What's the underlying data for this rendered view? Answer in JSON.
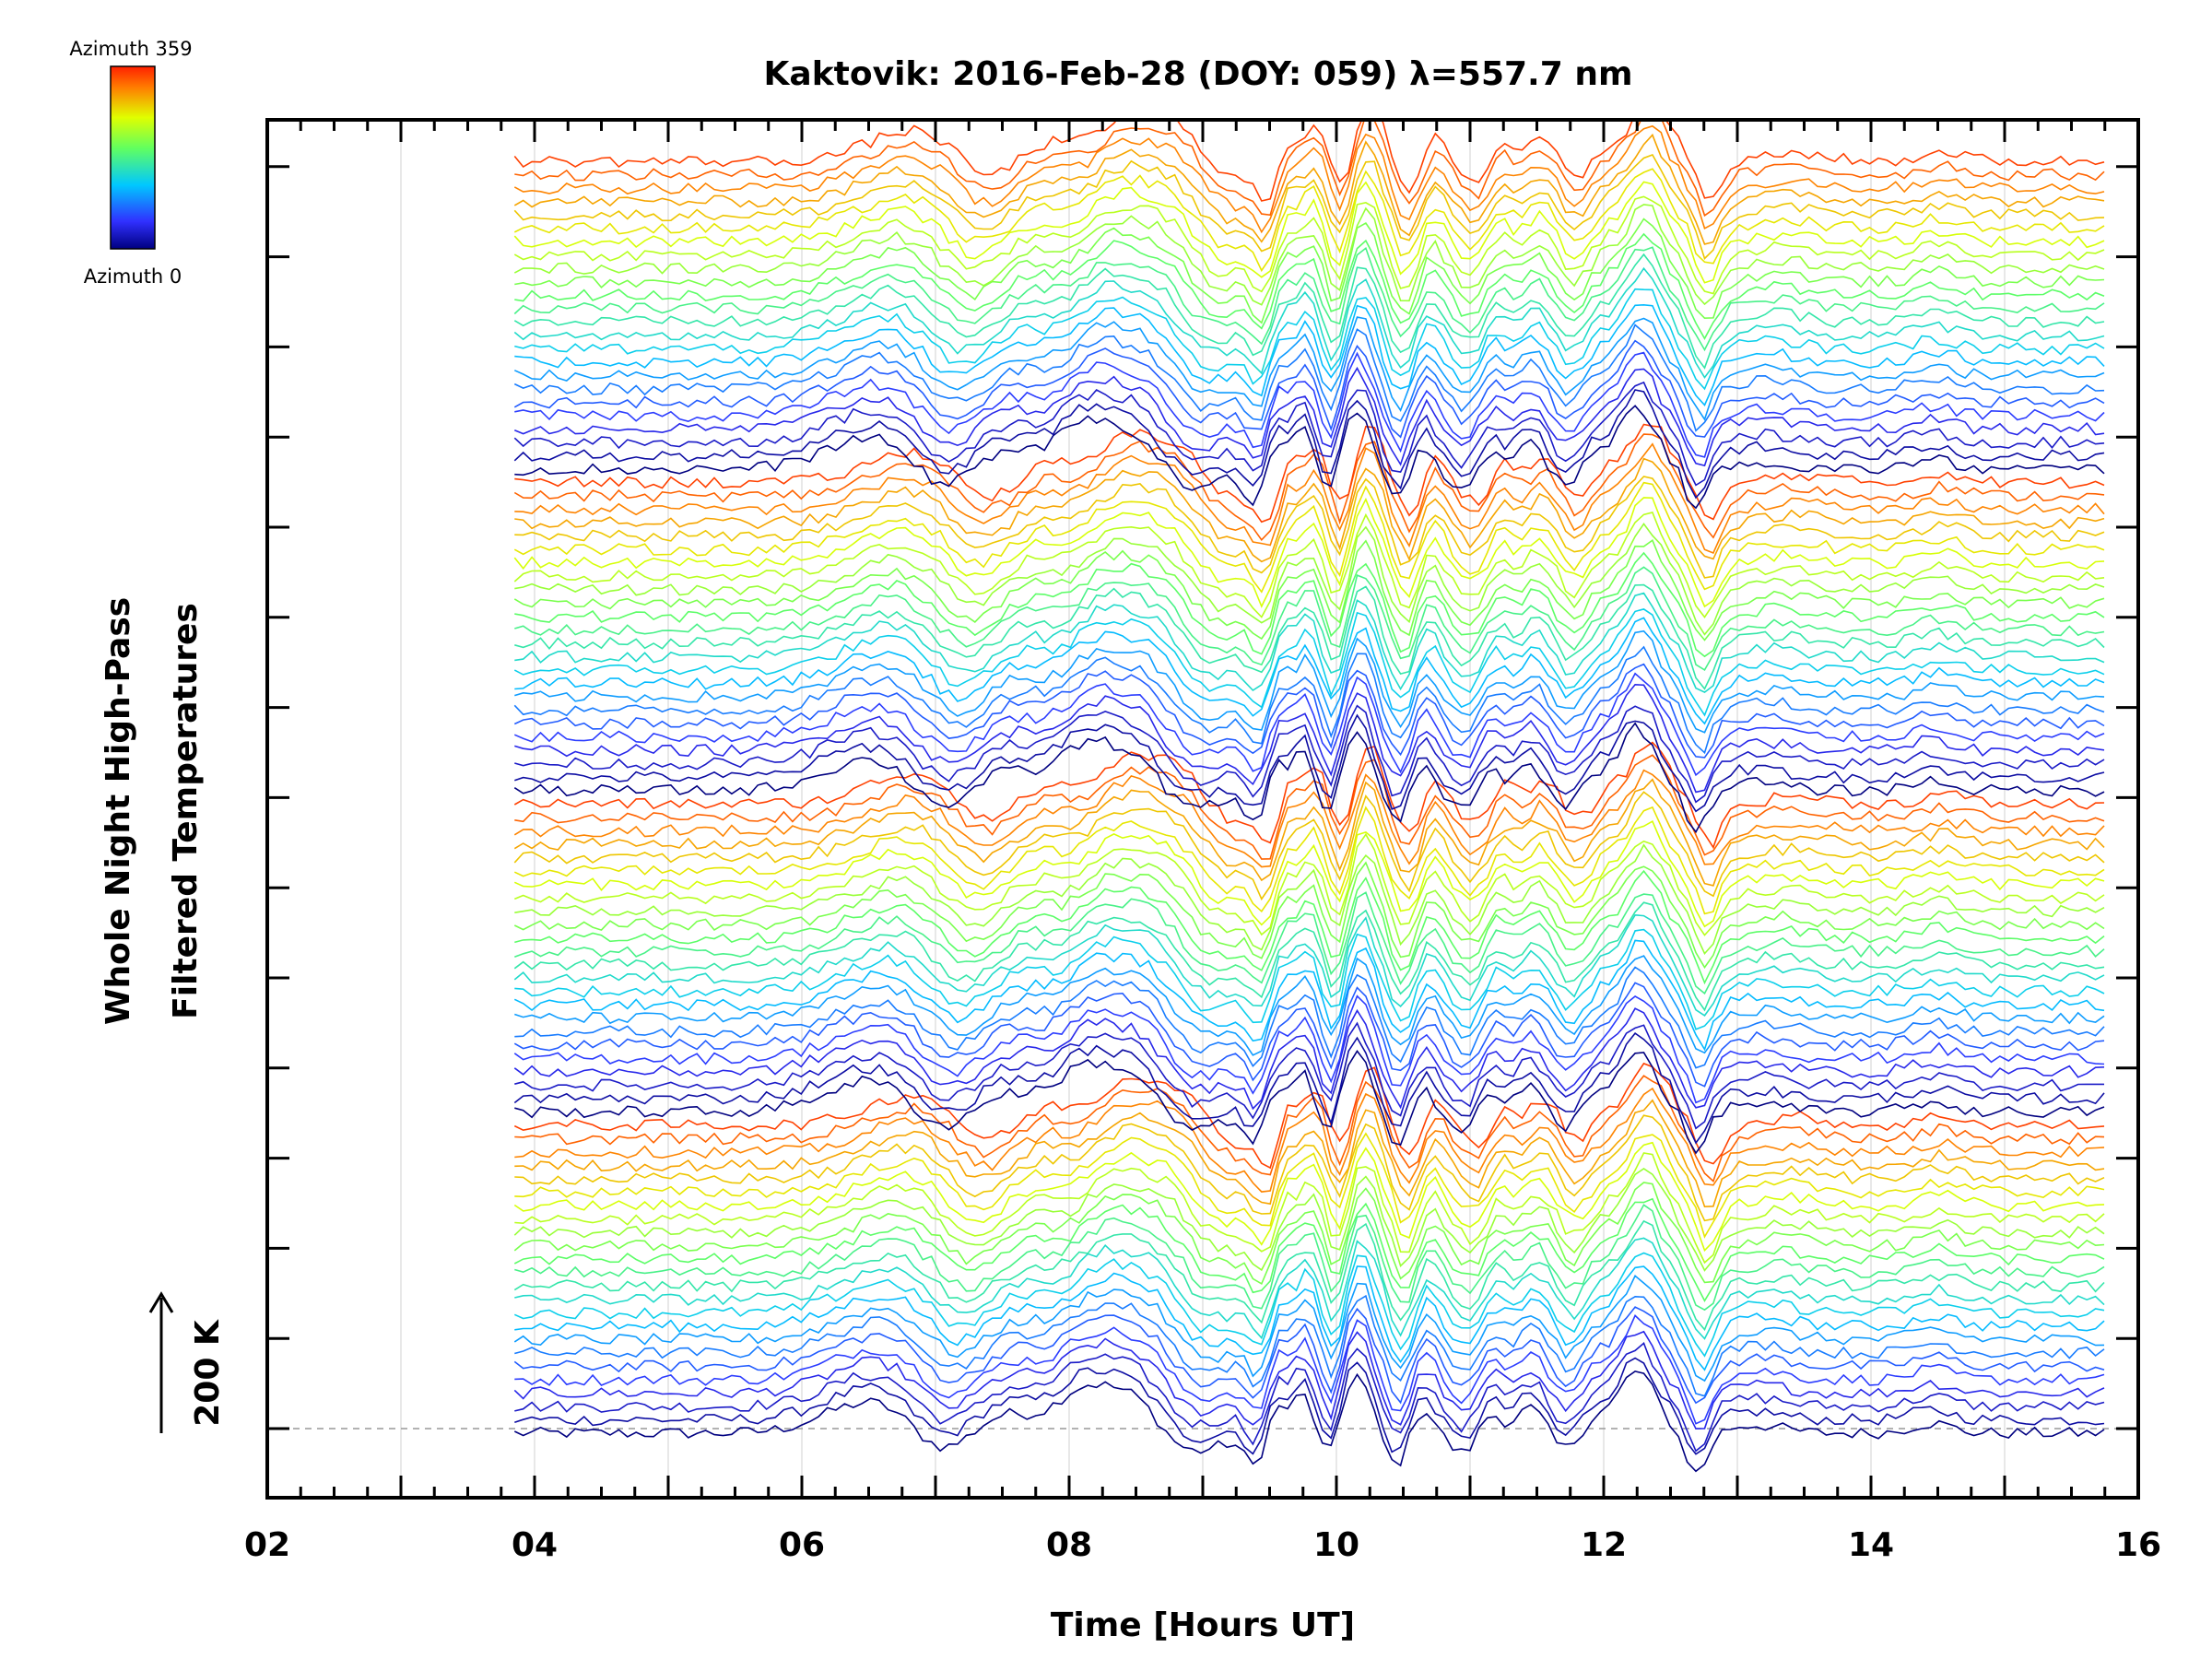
{
  "chart_data": {
    "type": "line",
    "title": "Kaktovik: 2016-Feb-28 (DOY: 059) λ=557.7 nm",
    "xlabel": "Time [Hours UT]",
    "ylabel_line1": "Whole Night High-Pass",
    "ylabel_line2": "Filtered Temperatures",
    "scale_bar_label": "200 K",
    "xlim": [
      2,
      16
    ],
    "x_tick_labels": [
      "02",
      "04",
      "06",
      "08",
      "10",
      "12",
      "14",
      "16"
    ],
    "data_start_hour": 3.85,
    "data_end_hour": 15.8,
    "n_series": 96,
    "colorbar": {
      "top_label": "Azimuth 359",
      "bottom_label": "Azimuth 0",
      "colormap": "rainbow",
      "stops": [
        "#000080",
        "#3030ff",
        "#00c8ff",
        "#60ff60",
        "#e0ff00",
        "#ff8000",
        "#ff2000"
      ]
    },
    "series_description": "Stacked high-pass filtered temperature traces, one per azimuth, offset vertically; color indicates azimuth",
    "dominant_features_hours": [
      6.8,
      7.7,
      8.3,
      8.7,
      9.5,
      9.8,
      10.2,
      10.6,
      11.0,
      11.5,
      12.3,
      12.75
    ]
  }
}
